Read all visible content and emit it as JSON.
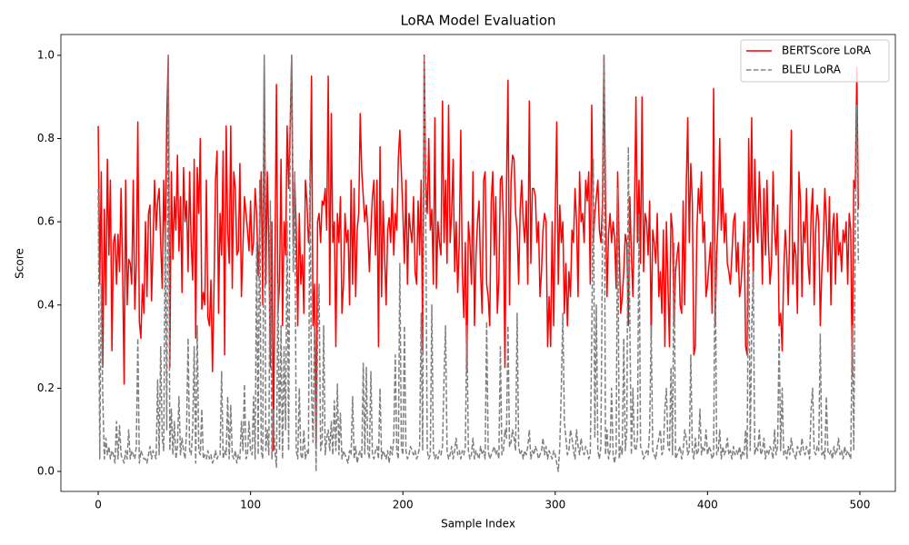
{
  "chart_data": {
    "type": "line",
    "title": "LoRA Model Evaluation",
    "xlabel": "Sample Index",
    "ylabel": "Score",
    "xlim": [
      -24.5,
      523.3
    ],
    "xticks": [
      0,
      100,
      200,
      300,
      400,
      500
    ],
    "ylim": [
      -0.048,
      1.05
    ],
    "yticks": [
      {
        "value": 0,
        "label": "0.0"
      },
      {
        "value": 0.2,
        "label": "0.2"
      },
      {
        "value": 0.4,
        "label": "0.4"
      },
      {
        "value": 0.6,
        "label": "0.6"
      },
      {
        "value": 0.8,
        "label": "0.8"
      },
      {
        "value": 1,
        "label": "1.0"
      }
    ],
    "legend": "upper right",
    "series": [
      {
        "name": "BERTScore LoRA",
        "color": "#ff0000",
        "dash": false,
        "values": [
          0.83,
          0.45,
          0.72,
          0.25,
          0.63,
          0.4,
          0.75,
          0.52,
          0.7,
          0.29,
          0.55,
          0.57,
          0.45,
          0.57,
          0.48,
          0.68,
          0.49,
          0.21,
          0.7,
          0.4,
          0.51,
          0.5,
          0.45,
          0.7,
          0.39,
          0.5,
          0.84,
          0.36,
          0.32,
          0.45,
          0.38,
          0.6,
          0.42,
          0.62,
          0.64,
          0.41,
          0.55,
          0.7,
          0.58,
          0.65,
          0.68,
          0.55,
          0.44,
          0.7,
          0.53,
          0.85,
          1.0,
          0.25,
          0.72,
          0.51,
          0.66,
          0.58,
          0.76,
          0.53,
          0.66,
          0.43,
          0.73,
          0.6,
          0.65,
          0.48,
          0.72,
          0.55,
          0.46,
          0.75,
          0.32,
          0.73,
          0.62,
          0.8,
          0.39,
          0.43,
          0.4,
          0.7,
          0.37,
          0.35,
          0.46,
          0.24,
          0.44,
          0.7,
          0.77,
          0.38,
          0.62,
          0.52,
          0.77,
          0.28,
          0.83,
          0.58,
          0.5,
          0.83,
          0.44,
          0.72,
          0.68,
          0.52,
          0.53,
          0.74,
          0.42,
          0.54,
          0.66,
          0.62,
          0.58,
          0.53,
          0.65,
          0.52,
          0.55,
          0.68,
          0.62,
          0.47,
          0.58,
          0.72,
          0.4,
          1.0,
          0.45,
          0.72,
          0.55,
          0.25,
          0.6,
          0.05,
          0.5,
          0.93,
          0.38,
          0.45,
          0.75,
          0.35,
          0.6,
          0.52,
          0.83,
          0.68,
          0.83,
          1.0,
          0.55,
          0.7,
          0.58,
          0.35,
          0.62,
          0.45,
          0.52,
          0.38,
          0.7,
          0.65,
          0.55,
          0.6,
          0.95,
          0.35,
          0.45,
          0.06,
          0.6,
          0.62,
          0.55,
          0.65,
          0.64,
          0.68,
          0.58,
          0.95,
          0.4,
          0.86,
          0.55,
          0.6,
          0.3,
          0.62,
          0.55,
          0.66,
          0.38,
          0.45,
          0.62,
          0.55,
          0.58,
          0.4,
          0.7,
          0.45,
          0.68,
          0.42,
          0.58,
          0.62,
          0.86,
          0.72,
          0.66,
          0.6,
          0.64,
          0.58,
          0.48,
          0.58,
          0.66,
          0.7,
          0.52,
          0.7,
          0.3,
          0.78,
          0.42,
          0.65,
          0.52,
          0.4,
          0.58,
          0.61,
          0.55,
          0.68,
          0.52,
          0.62,
          0.58,
          0.75,
          0.82,
          0.72,
          0.62,
          0.5,
          0.7,
          0.45,
          0.62,
          0.58,
          0.55,
          0.66,
          0.48,
          0.45,
          0.65,
          0.52,
          0.7,
          0.29,
          1.0,
          0.7,
          0.62,
          0.8,
          0.58,
          0.63,
          0.45,
          0.85,
          0.44,
          0.6,
          0.55,
          0.52,
          0.89,
          0.55,
          0.7,
          0.5,
          0.88,
          0.55,
          0.62,
          0.75,
          0.48,
          0.6,
          0.43,
          0.55,
          0.82,
          0.48,
          0.37,
          0.55,
          0.24,
          0.6,
          0.55,
          0.45,
          0.72,
          0.35,
          0.52,
          0.6,
          0.65,
          0.48,
          0.38,
          0.7,
          0.72,
          0.45,
          0.42,
          0.35,
          0.65,
          0.72,
          0.52,
          0.66,
          0.38,
          0.46,
          0.7,
          0.71,
          0.6,
          0.25,
          0.68,
          0.94,
          0.4,
          0.7,
          0.76,
          0.75,
          0.62,
          0.58,
          0.45,
          0.63,
          0.7,
          0.6,
          0.55,
          0.65,
          0.45,
          0.89,
          0.5,
          0.68,
          0.68,
          0.66,
          0.55,
          0.6,
          0.42,
          0.48,
          0.58,
          0.62,
          0.6,
          0.3,
          0.42,
          0.3,
          0.6,
          0.35,
          0.62,
          0.84,
          0.45,
          0.64,
          0.55,
          0.6,
          0.38,
          0.5,
          0.35,
          0.48,
          0.42,
          0.58,
          0.55,
          0.68,
          0.6,
          0.42,
          0.72,
          0.6,
          0.62,
          0.55,
          0.7,
          0.65,
          0.72,
          0.45,
          0.88,
          0.55,
          0.62,
          0.66,
          0.7,
          0.58,
          0.55,
          0.64,
          1.0,
          0.65,
          0.42,
          0.57,
          0.62,
          0.55,
          0.6,
          0.56,
          0.44,
          0.72,
          0.54,
          0.38,
          0.42,
          0.48,
          0.57,
          0.55,
          0.35,
          0.66,
          0.52,
          0.42,
          0.62,
          0.9,
          0.55,
          0.7,
          0.5,
          0.9,
          0.48,
          0.62,
          0.6,
          0.52,
          0.65,
          0.32,
          0.58,
          0.55,
          0.5,
          0.62,
          0.42,
          0.48,
          0.38,
          0.58,
          0.3,
          0.6,
          0.45,
          0.3,
          0.62,
          0.58,
          0.35,
          0.48,
          0.52,
          0.55,
          0.4,
          0.38,
          0.65,
          0.4,
          0.68,
          0.85,
          0.55,
          0.74,
          0.65,
          0.28,
          0.3,
          0.58,
          0.68,
          0.62,
          0.72,
          0.55,
          0.6,
          0.42,
          0.45,
          0.5,
          0.55,
          0.38,
          0.92,
          0.35,
          0.52,
          0.62,
          0.8,
          0.58,
          0.68,
          0.55,
          0.62,
          0.5,
          0.48,
          0.45,
          0.52,
          0.6,
          0.62,
          0.48,
          0.55,
          0.42,
          0.45,
          0.52,
          0.6,
          0.3,
          0.28,
          0.8,
          0.55,
          0.85,
          0.45,
          0.75,
          0.6,
          0.55,
          0.72,
          0.62,
          0.45,
          0.68,
          0.52,
          0.7,
          0.55,
          0.45,
          0.5,
          0.72,
          0.58,
          0.52,
          0.64,
          0.35,
          0.38,
          0.29,
          0.48,
          0.58,
          0.52,
          0.4,
          0.6,
          0.82,
          0.45,
          0.55,
          0.52,
          0.38,
          0.72,
          0.65,
          0.42,
          0.6,
          0.55,
          0.68,
          0.5,
          0.45,
          0.62,
          0.68,
          0.4,
          0.58,
          0.64,
          0.6,
          0.35,
          0.48,
          0.55,
          0.68,
          0.6,
          0.48,
          0.66,
          0.4,
          0.58,
          0.62,
          0.45,
          0.62,
          0.52,
          0.55,
          0.48,
          0.58,
          0.55,
          0.6,
          0.45,
          0.62,
          0.58,
          0.23,
          0.7,
          0.68,
          0.97,
          0.63
        ]
      },
      {
        "name": "BLEU LoRA",
        "color": "#808080",
        "dash": true,
        "values": [
          0.68,
          0.03,
          0.45,
          0.18,
          0.03,
          0.08,
          0.04,
          0.06,
          0.03,
          0.05,
          0.04,
          0.02,
          0.12,
          0.03,
          0.11,
          0.04,
          0.03,
          0.02,
          0.05,
          0.03,
          0.1,
          0.03,
          0.05,
          0.04,
          0.03,
          0.06,
          0.32,
          0.02,
          0.05,
          0.04,
          0.03,
          0.03,
          0.02,
          0.04,
          0.06,
          0.03,
          0.05,
          0.04,
          0.03,
          0.22,
          0.04,
          0.3,
          0.08,
          0.05,
          0.6,
          0.1,
          1.0,
          0.05,
          0.15,
          0.04,
          0.12,
          0.03,
          0.06,
          0.18,
          0.04,
          0.08,
          0.05,
          0.03,
          0.1,
          0.32,
          0.05,
          0.04,
          0.1,
          0.3,
          0.02,
          0.35,
          0.05,
          0.04,
          0.15,
          0.03,
          0.04,
          0.03,
          0.05,
          0.03,
          0.04,
          0.02,
          0.03,
          0.05,
          0.03,
          0.04,
          0.04,
          0.24,
          0.03,
          0.05,
          0.04,
          0.18,
          0.03,
          0.16,
          0.04,
          0.03,
          0.05,
          0.02,
          0.04,
          0.03,
          0.12,
          0.05,
          0.21,
          0.03,
          0.04,
          0.12,
          0.05,
          0.04,
          0.18,
          0.03,
          0.55,
          0.04,
          0.7,
          0.05,
          0.03,
          1.0,
          0.05,
          0.1,
          0.04,
          0.65,
          0.03,
          0.15,
          0.05,
          0.01,
          0.45,
          0.05,
          0.35,
          0.03,
          0.3,
          0.1,
          0.6,
          0.05,
          0.8,
          1.0,
          0.48,
          0.72,
          0.05,
          0.03,
          0.2,
          0.04,
          0.03,
          0.1,
          0.03,
          0.05,
          0.04,
          0.75,
          0.2,
          0.07,
          0.35,
          0.0,
          0.32,
          0.45,
          0.05,
          0.07,
          0.35,
          0.04,
          0.08,
          0.1,
          0.05,
          0.12,
          0.04,
          0.17,
          0.05,
          0.21,
          0.04,
          0.14,
          0.03,
          0.05,
          0.04,
          0.03,
          0.02,
          0.05,
          0.04,
          0.18,
          0.03,
          0.06,
          0.02,
          0.04,
          0.05,
          0.03,
          0.26,
          0.04,
          0.25,
          0.05,
          0.03,
          0.24,
          0.04,
          0.03,
          0.05,
          0.06,
          0.03,
          0.2,
          0.03,
          0.05,
          0.04,
          0.03,
          0.05,
          0.02,
          0.06,
          0.04,
          0.08,
          0.28,
          0.05,
          0.03,
          0.5,
          0.06,
          0.04,
          0.35,
          0.05,
          0.03,
          0.04,
          0.06,
          0.05,
          0.04,
          0.05,
          0.03,
          0.04,
          0.06,
          0.38,
          0.05,
          1.0,
          0.62,
          0.05,
          0.03,
          0.04,
          0.4,
          0.05,
          0.03,
          0.04,
          0.03,
          0.05,
          0.04,
          0.06,
          0.22,
          0.35,
          0.05,
          0.03,
          0.04,
          0.06,
          0.03,
          0.05,
          0.08,
          0.04,
          0.05,
          0.03,
          0.05,
          0.04,
          0.06,
          0.35,
          0.05,
          0.03,
          0.04,
          0.08,
          0.03,
          0.05,
          0.04,
          0.03,
          0.06,
          0.04,
          0.05,
          0.03,
          0.36,
          0.05,
          0.03,
          0.04,
          0.05,
          0.06,
          0.04,
          0.05,
          0.03,
          0.3,
          0.04,
          0.05,
          0.1,
          0.08,
          0.35,
          0.06,
          0.07,
          0.1,
          0.08,
          0.05,
          0.38,
          0.06,
          0.04,
          0.05,
          0.03,
          0.05,
          0.04,
          0.06,
          0.1,
          0.03,
          0.05,
          0.04,
          0.06,
          0.05,
          0.03,
          0.04,
          0.05,
          0.08,
          0.04,
          0.06,
          0.03,
          0.05,
          0.04,
          0.03,
          0.05,
          0.04,
          0.02,
          0.0,
          0.06,
          0.2,
          0.38,
          0.12,
          0.08,
          0.04,
          0.05,
          0.1,
          0.08,
          0.05,
          0.03,
          0.1,
          0.06,
          0.04,
          0.08,
          0.05,
          0.04,
          0.06,
          0.05,
          0.03,
          0.04,
          0.32,
          0.75,
          0.08,
          0.4,
          0.05,
          0.03,
          0.06,
          0.55,
          1.0,
          0.04,
          0.1,
          0.03,
          0.05,
          0.2,
          0.04,
          0.02,
          0.05,
          0.68,
          0.03,
          0.06,
          0.04,
          0.32,
          0.05,
          0.1,
          0.78,
          0.35,
          0.04,
          0.2,
          0.06,
          0.05,
          0.08,
          0.62,
          0.06,
          0.05,
          0.03,
          0.04,
          0.05,
          0.04,
          0.1,
          0.35,
          0.05,
          0.04,
          0.03,
          0.06,
          0.08,
          0.1,
          0.04,
          0.05,
          0.15,
          0.2,
          0.06,
          0.05,
          0.25,
          0.04,
          0.55,
          0.03,
          0.04,
          0.05,
          0.06,
          0.03,
          0.05,
          0.1,
          0.08,
          0.04,
          0.05,
          0.28,
          0.05,
          0.03,
          0.08,
          0.04,
          0.05,
          0.15,
          0.04,
          0.06,
          0.05,
          0.1,
          0.04,
          0.06,
          0.05,
          0.03,
          0.04,
          0.55,
          0.04,
          0.05,
          0.1,
          0.03,
          0.06,
          0.04,
          0.05,
          0.08,
          0.04,
          0.05,
          0.03,
          0.06,
          0.04,
          0.05,
          0.04,
          0.06,
          0.03,
          0.05,
          0.04,
          0.1,
          0.03,
          0.62,
          0.05,
          0.35,
          0.48,
          0.04,
          0.06,
          0.05,
          0.1,
          0.04,
          0.05,
          0.08,
          0.03,
          0.05,
          0.04,
          0.06,
          0.05,
          0.03,
          0.1,
          0.04,
          0.06,
          0.33,
          0.05,
          0.2,
          0.04,
          0.05,
          0.03,
          0.06,
          0.04,
          0.08,
          0.05,
          0.04,
          0.03,
          0.06,
          0.05,
          0.04,
          0.08,
          0.05,
          0.04,
          0.06,
          0.05,
          0.03,
          0.15,
          0.2,
          0.05,
          0.04,
          0.06,
          0.05,
          0.33,
          0.04,
          0.05,
          0.03,
          0.18,
          0.05,
          0.04,
          0.05,
          0.03,
          0.06,
          0.04,
          0.05,
          0.08,
          0.04,
          0.05,
          0.03,
          0.06,
          0.04,
          0.05,
          0.04,
          0.03,
          0.35,
          0.05,
          0.6,
          0.88,
          0.5
        ]
      }
    ]
  }
}
